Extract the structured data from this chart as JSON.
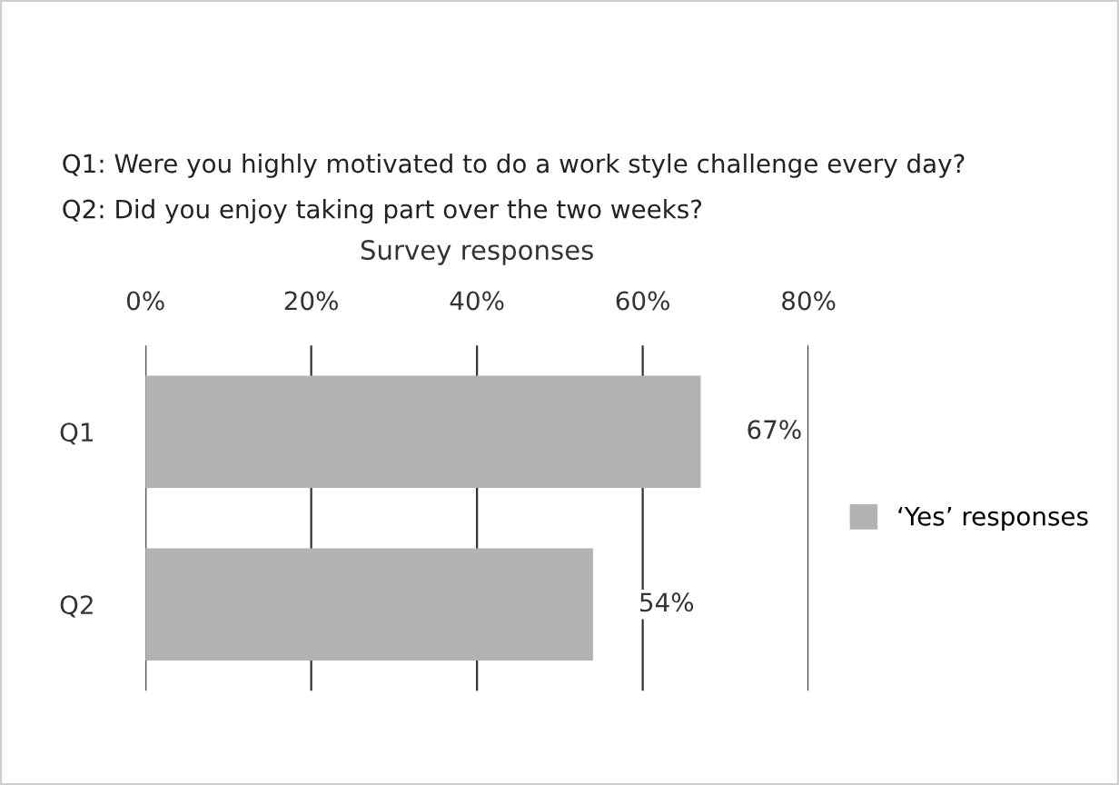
{
  "chart_data": {
    "type": "bar",
    "orientation": "horizontal",
    "title": "Survey responses",
    "annotations": [
      "Q1: Were you highly motivated to do a work style challenge every day?",
      "Q2: Did you enjoy taking part over the two weeks?"
    ],
    "categories": [
      "Q1",
      "Q2"
    ],
    "series": [
      {
        "name": "‘Yes’ responses",
        "color": "#b3b3b3",
        "values": [
          67,
          54
        ],
        "value_labels": [
          "67%",
          "54%"
        ]
      }
    ],
    "xlim": [
      0,
      80
    ],
    "xticks": [
      {
        "value": 0,
        "label": "0%"
      },
      {
        "value": 20,
        "label": "20%"
      },
      {
        "value": 40,
        "label": "40%"
      },
      {
        "value": 60,
        "label": "60%"
      },
      {
        "value": 80,
        "label": "80%"
      }
    ],
    "grid": "x",
    "legend": "right"
  }
}
